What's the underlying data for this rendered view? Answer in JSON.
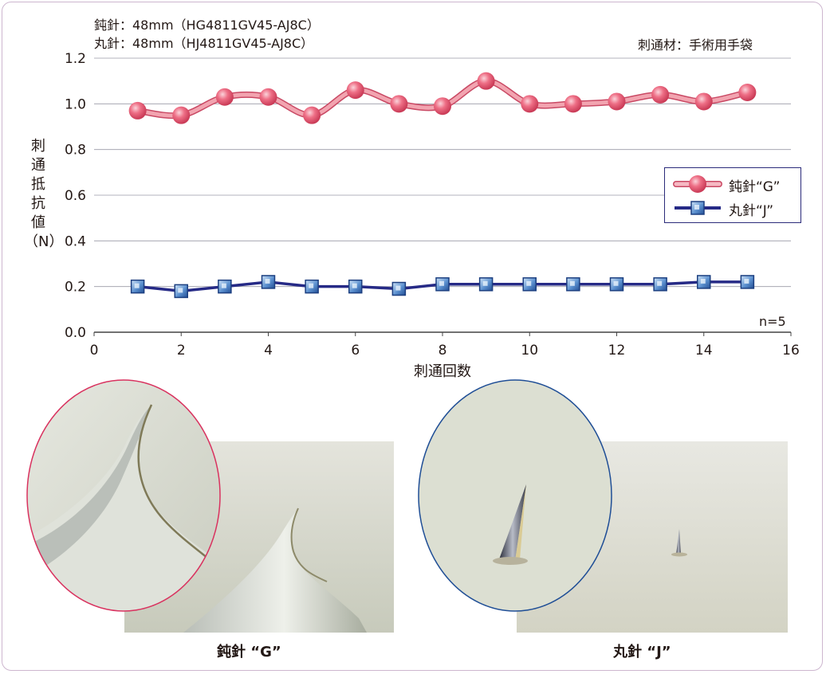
{
  "notes": {
    "blunt_spec": "鈍針：48mm（HG4811GV45-AJ8C）",
    "round_spec": "丸針：48mm（HJ4811GV45-AJ8C）",
    "material": "刺通材：手術用手袋",
    "sample_n": "n=5"
  },
  "chart_data": {
    "type": "line",
    "xlabel": "刺通回数",
    "ylabel": "刺通抵抗値（N）",
    "ylabel_chars": [
      "刺",
      "通",
      "抵",
      "抗",
      "値",
      "（N）"
    ],
    "xlim": [
      0,
      16
    ],
    "ylim": [
      0.0,
      1.2
    ],
    "x_ticks": [
      0,
      2,
      4,
      6,
      8,
      10,
      12,
      14,
      16
    ],
    "y_ticks": [
      "0.0",
      "0.2",
      "0.4",
      "0.6",
      "0.8",
      "1.0",
      "1.2"
    ],
    "grid": true,
    "legend_position": "right-middle",
    "x": [
      1,
      2,
      3,
      4,
      5,
      6,
      7,
      8,
      9,
      10,
      11,
      12,
      13,
      14,
      15
    ],
    "series": [
      {
        "name": "鈍針“G”",
        "marker": "circle",
        "color": "#e8566f",
        "line_color": "#f2a4b0",
        "values": [
          0.97,
          0.95,
          1.03,
          1.03,
          0.95,
          1.06,
          1.0,
          0.99,
          1.1,
          1.0,
          1.0,
          1.01,
          1.04,
          1.01,
          1.05
        ]
      },
      {
        "name": "丸針“J”",
        "marker": "square",
        "color": "#3a6fb5",
        "line_color": "#262a86",
        "values": [
          0.2,
          0.18,
          0.2,
          0.22,
          0.2,
          0.2,
          0.19,
          0.21,
          0.21,
          0.21,
          0.21,
          0.21,
          0.21,
          0.22,
          0.22
        ]
      }
    ]
  },
  "photos": {
    "blunt_caption": "鈍針 “G”",
    "round_caption": "丸針 “J”",
    "blunt_ring_color": "#d9325f",
    "round_ring_color": "#1f4e96"
  }
}
